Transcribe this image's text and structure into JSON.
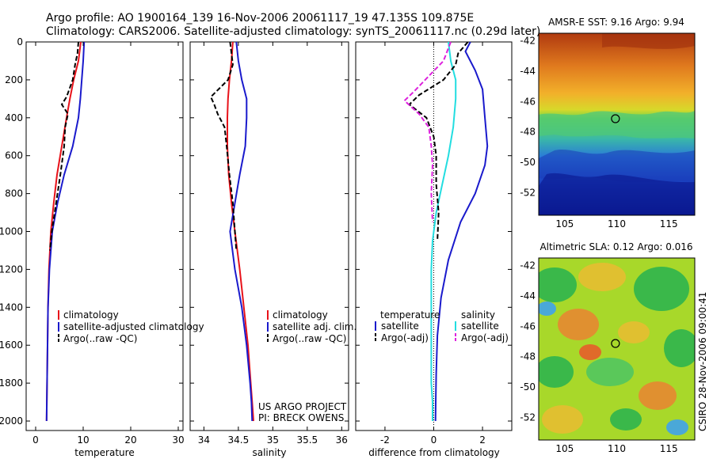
{
  "header": {
    "line1": "Argo profile: AO 1900164_139 16-Nov-2006 20061117_19 47.135S 109.875E",
    "line2": "Climatology: CARS2006. Satellite-adjusted climatology: synTS_20061117.nc (0.29d later)"
  },
  "credit": {
    "project": "US ARGO PROJECT",
    "pi": "PI: BRECK OWENS",
    "csiro": "CSIRO 28-Nov-2006 09:00:41"
  },
  "colors": {
    "climatology": "#e8121a",
    "satellite": "#1a1acc",
    "argo": "#000000",
    "sat_salinity": "#22dde0",
    "argo_salinity": "#dd22dd"
  },
  "chart_data": [
    {
      "type": "line",
      "id": "temperature",
      "xlabel": "temperature",
      "xlim": [
        -2,
        31
      ],
      "ylim": [
        0,
        2050
      ],
      "xticks": [
        "0",
        "10",
        "20",
        "30"
      ],
      "yticks": [
        "0",
        "200",
        "400",
        "600",
        "800",
        "1000",
        "1200",
        "1400",
        "1600",
        "1800",
        "2000"
      ],
      "legend": [
        "climatology",
        "satellite-adjusted climatology",
        "Argo(..raw -QC)"
      ],
      "series": [
        {
          "name": "climatology",
          "color": "#e8121a",
          "style": "solid",
          "x": [
            9.5,
            9.0,
            8.0,
            7.2,
            6.5,
            5.5,
            4.5,
            3.8,
            3.2,
            2.8,
            2.6,
            2.5,
            2.4,
            2.35,
            2.3
          ],
          "y": [
            0,
            100,
            200,
            300,
            400,
            550,
            700,
            850,
            1000,
            1200,
            1400,
            1600,
            1800,
            1900,
            2000
          ]
        },
        {
          "name": "satellite-adjusted climatology",
          "color": "#1a1acc",
          "style": "solid",
          "x": [
            10.2,
            10.0,
            9.7,
            9.4,
            9.0,
            7.8,
            6.0,
            4.6,
            3.5,
            2.9,
            2.6,
            2.5,
            2.4,
            2.35,
            2.3
          ],
          "y": [
            0,
            100,
            200,
            300,
            400,
            550,
            700,
            850,
            1000,
            1200,
            1400,
            1600,
            1800,
            1900,
            2000
          ]
        },
        {
          "name": "Argo(..raw -QC)",
          "color": "#000000",
          "style": "dash",
          "x": [
            9.0,
            8.8,
            8.3,
            7.8,
            6.5,
            5.5,
            6.8,
            6.2,
            6.0,
            5.2,
            4.3,
            3.4,
            3.0
          ],
          "y": [
            0,
            60,
            120,
            200,
            290,
            330,
            380,
            450,
            550,
            700,
            850,
            1000,
            1100
          ]
        }
      ]
    },
    {
      "type": "line",
      "id": "salinity",
      "xlabel": "salinity",
      "xlim": [
        33.8,
        36.1
      ],
      "ylim": [
        0,
        2050
      ],
      "xticks": [
        "34",
        "34.5",
        "35",
        "35.5",
        "36"
      ],
      "legend": [
        "climatology",
        "satellite adj. clim.",
        "Argo(..raw -QC)"
      ],
      "series": [
        {
          "name": "climatology",
          "color": "#e8121a",
          "style": "solid",
          "x": [
            34.42,
            34.4,
            34.37,
            34.35,
            34.34,
            34.34,
            34.36,
            34.4,
            34.45,
            34.52,
            34.58,
            34.64,
            34.68,
            34.7,
            34.72
          ],
          "y": [
            0,
            100,
            200,
            300,
            400,
            550,
            700,
            850,
            1000,
            1200,
            1400,
            1600,
            1800,
            1900,
            2000
          ]
        },
        {
          "name": "satellite adj. clim.",
          "color": "#1a1acc",
          "style": "solid",
          "x": [
            34.47,
            34.5,
            34.55,
            34.62,
            34.62,
            34.6,
            34.52,
            34.45,
            34.38,
            34.45,
            34.55,
            34.62,
            34.67,
            34.69,
            34.7
          ],
          "y": [
            0,
            100,
            200,
            300,
            400,
            550,
            700,
            850,
            1000,
            1200,
            1400,
            1600,
            1800,
            1900,
            2000
          ]
        },
        {
          "name": "Argo(..raw -QC)",
          "color": "#000000",
          "style": "dash",
          "x": [
            34.38,
            34.4,
            34.42,
            34.35,
            34.1,
            34.15,
            34.2,
            34.3,
            34.33,
            34.37,
            34.42,
            34.45,
            34.47
          ],
          "y": [
            0,
            60,
            120,
            200,
            290,
            330,
            380,
            450,
            550,
            700,
            850,
            1000,
            1100
          ]
        }
      ]
    },
    {
      "type": "line",
      "id": "difference",
      "xlabel": "difference from climatology",
      "xlim": [
        -3.2,
        3.2
      ],
      "ylim": [
        0,
        2050
      ],
      "xticks": [
        "-2",
        "0",
        "2"
      ],
      "legend_groups": [
        {
          "heading": "temperature",
          "items": [
            "satellite",
            "Argo(-adj)"
          ]
        },
        {
          "heading": "salinity",
          "items": [
            "satellite",
            "Argo(-adj)"
          ]
        }
      ],
      "series": [
        {
          "name": "satellite",
          "group": "temperature",
          "color": "#1a1acc",
          "style": "solid",
          "x": [
            1.5,
            1.3,
            1.7,
            2.0,
            2.1,
            2.2,
            2.1,
            1.7,
            1.1,
            0.6,
            0.3,
            0.15,
            0.1,
            0.08,
            0.07
          ],
          "y": [
            0,
            50,
            150,
            250,
            400,
            550,
            650,
            800,
            950,
            1150,
            1350,
            1550,
            1750,
            1900,
            2000
          ]
        },
        {
          "name": "satellite",
          "group": "salinity",
          "color": "#22dde0",
          "style": "solid",
          "x": [
            0.6,
            0.7,
            0.9,
            0.9,
            0.8,
            0.6,
            0.35,
            0.1,
            -0.05,
            -0.1,
            -0.1,
            -0.1,
            -0.1,
            -0.05,
            -0.05
          ],
          "y": [
            0,
            100,
            200,
            300,
            450,
            600,
            750,
            900,
            1050,
            1200,
            1400,
            1600,
            1800,
            1900,
            2000
          ]
        },
        {
          "name": "Argo(-adj)",
          "group": "temperature",
          "color": "#000000",
          "style": "dash",
          "x": [
            1.4,
            1.0,
            0.9,
            0.4,
            -0.6,
            -1.0,
            -0.3,
            0.0,
            0.1,
            0.1,
            0.2,
            0.15
          ],
          "y": [
            0,
            60,
            120,
            200,
            280,
            330,
            400,
            500,
            600,
            750,
            900,
            1050
          ]
        },
        {
          "name": "Argo(-adj)",
          "group": "salinity",
          "color": "#dd22dd",
          "style": "dash",
          "x": [
            0.7,
            0.4,
            -0.2,
            -0.8,
            -1.2,
            -0.6,
            -0.2,
            -0.1,
            -0.05,
            -0.1,
            -0.05
          ],
          "y": [
            0,
            100,
            180,
            260,
            310,
            380,
            450,
            550,
            650,
            800,
            950
          ]
        }
      ]
    },
    {
      "type": "heatmap",
      "id": "sst-map",
      "title": "AMSR-E SST: 9.16  Argo: 9.94",
      "xlim": [
        102.5,
        117.5
      ],
      "ylim": [
        -53.5,
        -41.5
      ],
      "xticks": [
        "105",
        "110",
        "115"
      ],
      "yticks": [
        "-42",
        "-44",
        "-46",
        "-48",
        "-50",
        "-52"
      ],
      "marker": {
        "lon": 109.875,
        "lat": -47.135
      }
    },
    {
      "type": "heatmap",
      "id": "sla-map",
      "title": "Altimetric SLA: 0.12  Argo: 0.016",
      "xlim": [
        102.5,
        117.5
      ],
      "ylim": [
        -53.5,
        -41.5
      ],
      "xticks": [
        "105",
        "110",
        "115"
      ],
      "yticks": [
        "-42",
        "-44",
        "-46",
        "-48",
        "-50",
        "-52"
      ],
      "marker": {
        "lon": 109.875,
        "lat": -47.135
      }
    }
  ]
}
